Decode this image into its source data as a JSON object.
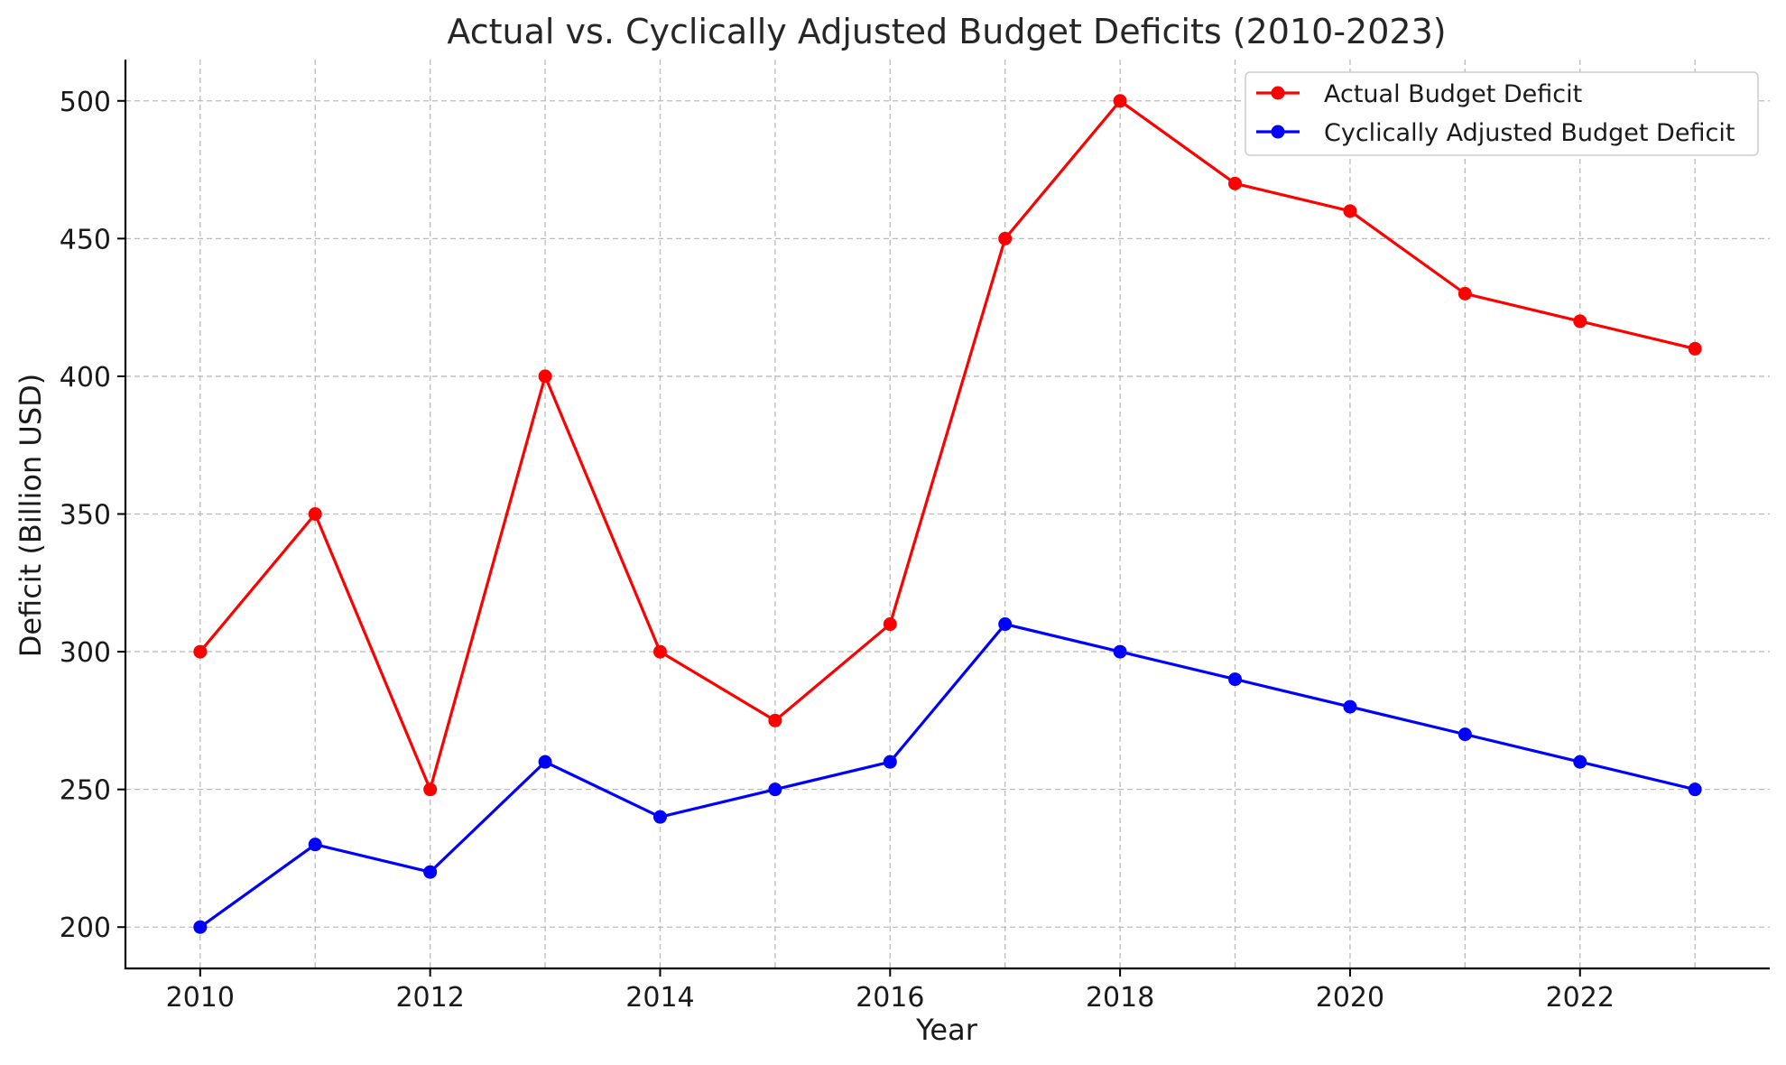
{
  "chart_data": {
    "type": "line",
    "title": "Actual vs. Cyclically Adjusted Budget Deficits (2010-2023)",
    "xlabel": "Year",
    "ylabel": "Deficit (Billion USD)",
    "x": [
      2010,
      2011,
      2012,
      2013,
      2014,
      2015,
      2016,
      2017,
      2018,
      2019,
      2020,
      2021,
      2022,
      2023
    ],
    "xlim": [
      2009.35,
      2023.65
    ],
    "ylim": [
      185,
      515
    ],
    "x_ticks": [
      "2010",
      "2012",
      "2014",
      "2016",
      "2018",
      "2020",
      "2022"
    ],
    "y_ticks": [
      "200",
      "250",
      "300",
      "350",
      "400",
      "450",
      "500"
    ],
    "grid": true,
    "legend_position": "upper right",
    "series": [
      {
        "name": "Actual Budget Deficit",
        "color": "#ff0000",
        "marker": "circle",
        "values": [
          300,
          350,
          250,
          400,
          300,
          275,
          310,
          450,
          500,
          470,
          460,
          430,
          420,
          410
        ]
      },
      {
        "name": "Cyclically Adjusted Budget Deficit",
        "color": "#0000ff",
        "marker": "circle",
        "values": [
          200,
          230,
          220,
          260,
          240,
          250,
          260,
          310,
          300,
          290,
          280,
          270,
          260,
          250
        ]
      }
    ]
  }
}
